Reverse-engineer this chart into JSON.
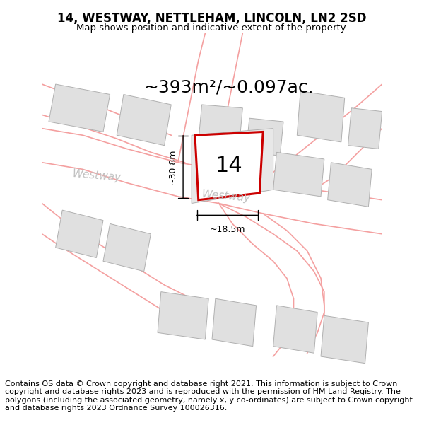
{
  "title": "14, WESTWAY, NETTLEHAM, LINCOLN, LN2 2SD",
  "subtitle": "Map shows position and indicative extent of the property.",
  "area_text": "~393m²/~0.097ac.",
  "dim_vertical": "~30.8m",
  "dim_horizontal": "~18.5m",
  "property_number": "14",
  "street_label_left": "Westway",
  "street_label_center": "Westway",
  "copyright_text": "Contains OS data © Crown copyright and database right 2021. This information is subject to Crown copyright and database rights 2023 and is reproduced with the permission of HM Land Registry. The polygons (including the associated geometry, namely x, y co-ordinates) are subject to Crown copyright and database rights 2023 Ordnance Survey 100026316.",
  "map_bg": "#ffffff",
  "building_fill": "#e0e0e0",
  "building_edge": "#b0b0b0",
  "street_line_color": "#f4a0a0",
  "property_edge": "#cc0000",
  "property_fill": "#ffffff",
  "title_fontsize": 12,
  "subtitle_fontsize": 9.5,
  "area_fontsize": 18,
  "number_fontsize": 22,
  "dim_fontsize": 9,
  "street_fontsize": 11,
  "copyright_fontsize": 8
}
